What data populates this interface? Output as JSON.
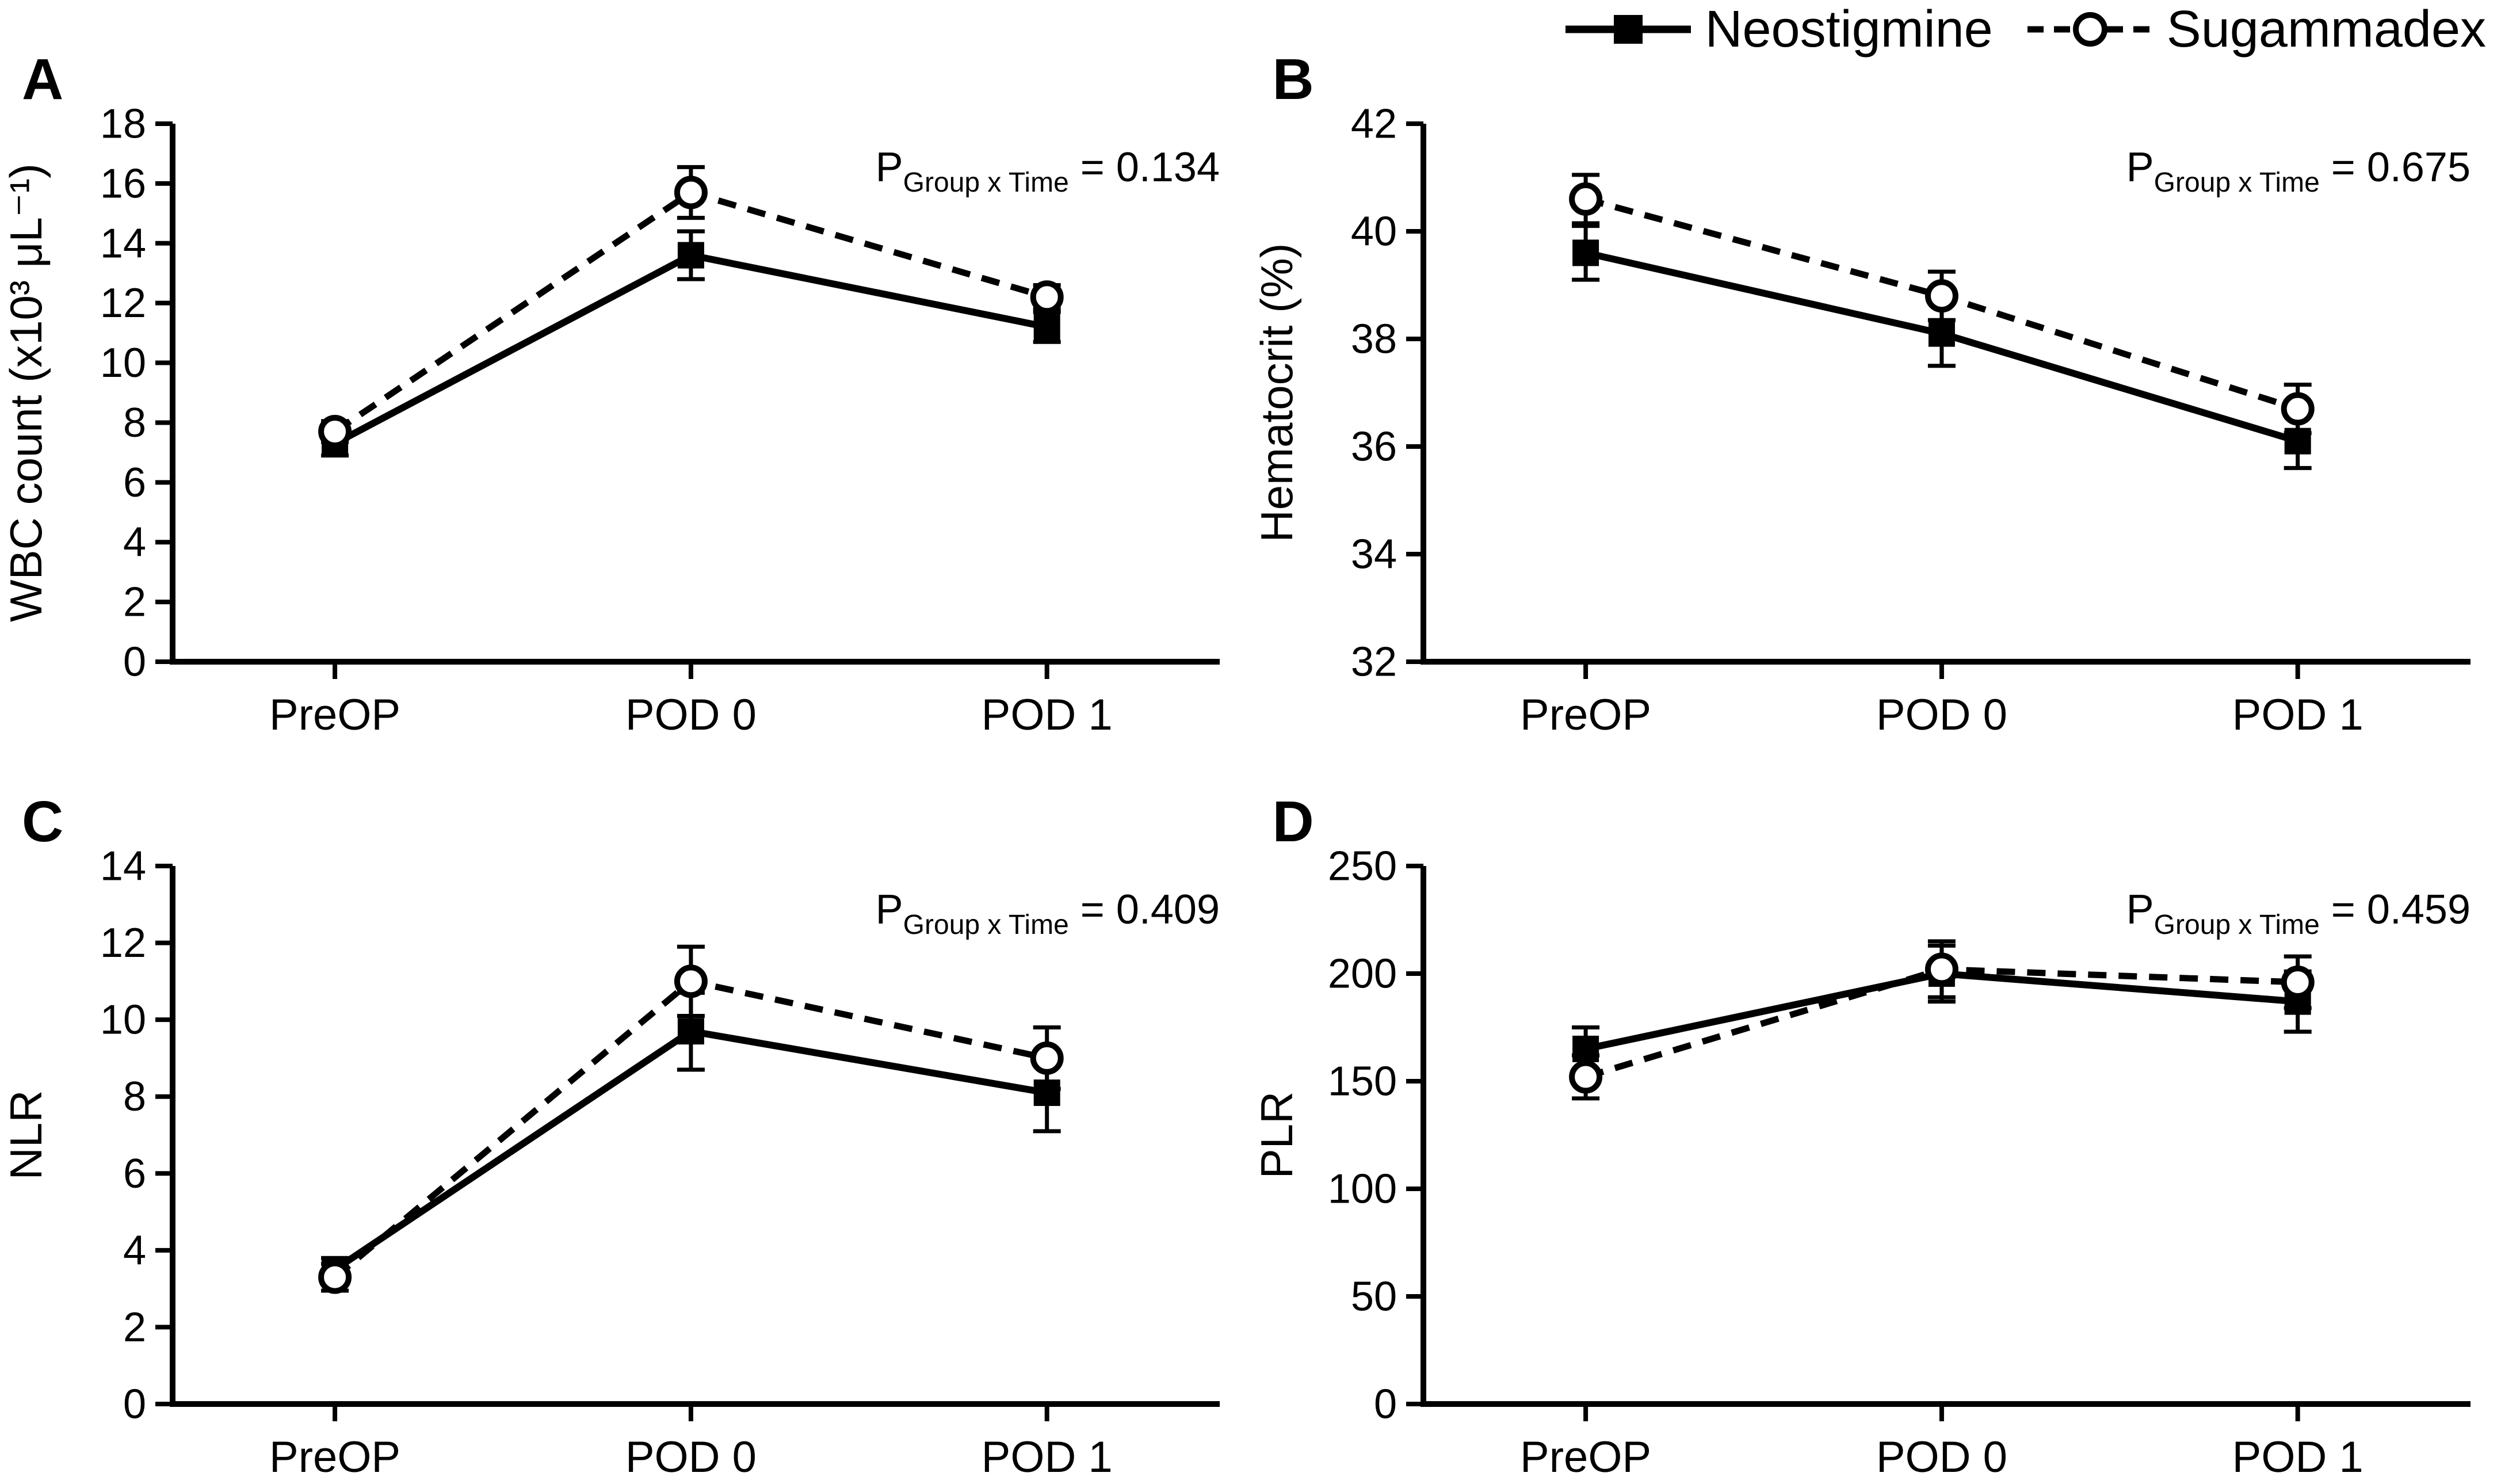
{
  "colors": {
    "foreground": "#000000",
    "background": "#ffffff"
  },
  "legend": {
    "items": [
      {
        "name": "Neostigmine",
        "marker": "filled-square",
        "line": "solid"
      },
      {
        "name": "Sugammadex",
        "marker": "open-circle",
        "line": "dashed"
      }
    ]
  },
  "categories": [
    "PreOP",
    "POD 0",
    "POD 1"
  ],
  "chart_data": [
    {
      "panel": "A",
      "type": "line",
      "ylabel": "WBC count (x10³ μL⁻¹)",
      "ylim": [
        0,
        18
      ],
      "yticks": [
        0,
        2,
        4,
        6,
        8,
        10,
        12,
        14,
        16,
        18
      ],
      "x_categories": [
        "PreOP",
        "POD 0",
        "POD 1"
      ],
      "p": {
        "prefix": "P",
        "subscript": "Group x Time",
        "equals": " = 0.134",
        "value": 0.134
      },
      "legend_position": "top-right-of-figure",
      "grid": false,
      "series": [
        {
          "name": "Neostigmine",
          "marker": "square",
          "line": "solid",
          "values": [
            7.3,
            13.6,
            11.2
          ],
          "errors": [
            0.4,
            0.8,
            0.5
          ]
        },
        {
          "name": "Sugammadex",
          "marker": "circle",
          "line": "dashed",
          "values": [
            7.7,
            15.7,
            12.2
          ],
          "errors": [
            0.35,
            0.85,
            0.4
          ]
        }
      ]
    },
    {
      "panel": "B",
      "type": "line",
      "ylabel": "Hematocrit (%)",
      "ylim": [
        32,
        42
      ],
      "yticks": [
        32,
        34,
        36,
        38,
        40,
        42
      ],
      "x_categories": [
        "PreOP",
        "POD 0",
        "POD 1"
      ],
      "p": {
        "prefix": "P",
        "subscript": "Group x Time",
        "equals": " = 0.675",
        "value": 0.675
      },
      "grid": false,
      "series": [
        {
          "name": "Neostigmine",
          "marker": "square",
          "line": "solid",
          "values": [
            39.6,
            38.1,
            36.1
          ],
          "errors": [
            0.5,
            0.6,
            0.5
          ]
        },
        {
          "name": "Sugammadex",
          "marker": "circle",
          "line": "dashed",
          "values": [
            40.6,
            38.8,
            36.7
          ],
          "errors": [
            0.45,
            0.45,
            0.45
          ]
        }
      ]
    },
    {
      "panel": "C",
      "type": "line",
      "ylabel": "NLR",
      "ylim": [
        0,
        14
      ],
      "yticks": [
        0,
        2,
        4,
        6,
        8,
        10,
        12,
        14
      ],
      "x_categories": [
        "PreOP",
        "POD 0",
        "POD 1"
      ],
      "p": {
        "prefix": "P",
        "subscript": "Group x Time",
        "equals": " = 0.409",
        "value": 0.409
      },
      "grid": false,
      "series": [
        {
          "name": "Neostigmine",
          "marker": "square",
          "line": "solid",
          "values": [
            3.5,
            9.7,
            8.1
          ],
          "errors": [
            0.3,
            1.0,
            1.0
          ]
        },
        {
          "name": "Sugammadex",
          "marker": "circle",
          "line": "dashed",
          "values": [
            3.3,
            11.0,
            9.0
          ],
          "errors": [
            0.35,
            0.9,
            0.8
          ]
        }
      ]
    },
    {
      "panel": "D",
      "type": "line",
      "ylabel": "PLR",
      "ylim": [
        0,
        250
      ],
      "yticks": [
        0,
        50,
        100,
        150,
        200,
        250
      ],
      "x_categories": [
        "PreOP",
        "POD 0",
        "POD 1"
      ],
      "p": {
        "prefix": "P",
        "subscript": "Group x Time",
        "equals": " = 0.459",
        "value": 0.459
      },
      "grid": false,
      "series": [
        {
          "name": "Neostigmine",
          "marker": "square",
          "line": "solid",
          "values": [
            165,
            200,
            187
          ],
          "errors": [
            10,
            13,
            14
          ]
        },
        {
          "name": "Sugammadex",
          "marker": "circle",
          "line": "dashed",
          "values": [
            152,
            202,
            196
          ],
          "errors": [
            10,
            13,
            12
          ]
        }
      ]
    }
  ]
}
